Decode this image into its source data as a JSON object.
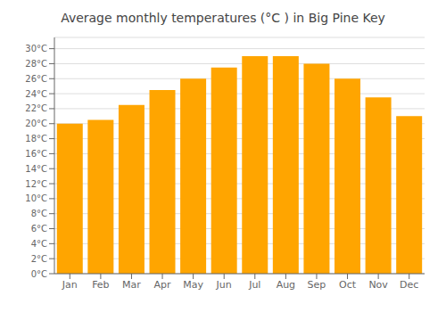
{
  "chart_data": {
    "type": "bar",
    "title": "Average monthly temperatures (°C ) in Big Pine Key",
    "categories": [
      "Jan",
      "Feb",
      "Mar",
      "Apr",
      "May",
      "Jun",
      "Jul",
      "Aug",
      "Sep",
      "Oct",
      "Nov",
      "Dec"
    ],
    "values": [
      20,
      20.5,
      22.5,
      24.5,
      26,
      27.5,
      29,
      29,
      28,
      26,
      23.5,
      21
    ],
    "color": "#FFA500",
    "ylim": [
      0,
      31.5
    ],
    "yticks": [
      {
        "value": 0,
        "label": "0°C"
      },
      {
        "value": 2,
        "label": "2°C"
      },
      {
        "value": 4,
        "label": "4°C"
      },
      {
        "value": 6,
        "label": "6°C"
      },
      {
        "value": 8,
        "label": "8°C"
      },
      {
        "value": 10,
        "label": "10°C"
      },
      {
        "value": 12,
        "label": "12°C"
      },
      {
        "value": 14,
        "label": "14°C"
      },
      {
        "value": 16,
        "label": "16°C"
      },
      {
        "value": 18,
        "label": "18°C"
      },
      {
        "value": 20,
        "label": "20°C"
      },
      {
        "value": 22,
        "label": "22°C"
      },
      {
        "value": 24,
        "label": "24°C"
      },
      {
        "value": 26,
        "label": "26°C"
      },
      {
        "value": 28,
        "label": "28°C"
      },
      {
        "value": 30,
        "label": "30°C"
      }
    ],
    "grid": true
  }
}
